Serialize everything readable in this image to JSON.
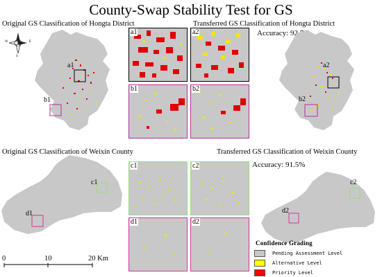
{
  "title": "County-Swap Stability Test for GS",
  "hongta": {
    "original_label": "Original GS Classification of Hongta District",
    "transferred_label": "Transferred GS Classification of Hongta District",
    "accuracy": "Accuracy: 92.7%",
    "box_labels": [
      "a1",
      "b1",
      "a2",
      "b2"
    ],
    "panel_labels": [
      "a1",
      "a2",
      "b1",
      "b2"
    ]
  },
  "weixin": {
    "original_label": "Original GS Classification of Weixin County",
    "transferred_label": "Transferred GS Classification of Weixin County",
    "accuracy": "Accuracy: 91.5%",
    "box_labels": [
      "c1",
      "d1",
      "c2",
      "d2"
    ],
    "panel_labels": [
      "c1",
      "c2",
      "d1",
      "d2"
    ]
  },
  "compass": {
    "n": "N",
    "s": "S",
    "e": "E",
    "w": "W"
  },
  "scale_bar": {
    "ticks": [
      "0",
      "10",
      "20 Km"
    ]
  },
  "legend": {
    "title": "Confidence Grading",
    "items": [
      {
        "label": "Pending Assessment Level",
        "color": "#c8c8c8"
      },
      {
        "label": "Alternative Level",
        "color": "#ffff00"
      },
      {
        "label": "Priority Level",
        "color": "#ff0000"
      }
    ]
  },
  "colors": {
    "land": "#c8c8c8",
    "priority": "#e00000",
    "alternative": "#f2e600",
    "a_frame": "#000000",
    "b_frame": "#b0309a",
    "c_frame": "#9adc7a",
    "d_frame": "#d62fa0"
  }
}
